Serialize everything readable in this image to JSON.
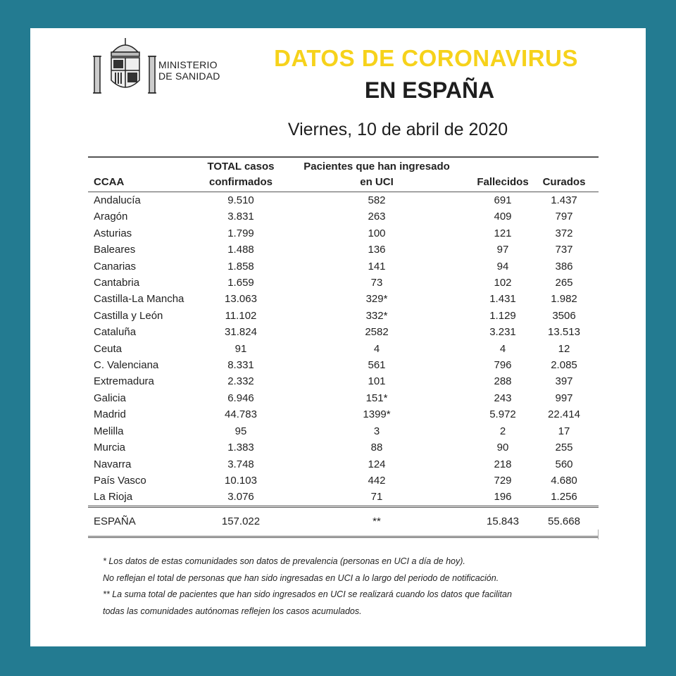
{
  "colors": {
    "border": "#237b91",
    "title_accent": "#f6d21b"
  },
  "logo": {
    "icon": "coat-of-arms-of-spain",
    "line1": "MINISTERIO",
    "line2": "DE SANIDAD"
  },
  "header": {
    "title_line1": "DATOS DE CORONAVIRUS",
    "title_line2": "EN ESPAÑA",
    "date": "Viernes, 10 de abril de 2020"
  },
  "table": {
    "columns": [
      {
        "line1": "",
        "line2": "CCAA"
      },
      {
        "line1": "TOTAL casos",
        "line2": "confirmados"
      },
      {
        "line1": "Pacientes que han ingresado",
        "line2": "en UCI"
      },
      {
        "line1": "",
        "line2": "Fallecidos"
      },
      {
        "line1": "",
        "line2": "Curados"
      }
    ],
    "rows": [
      [
        "Andalucía",
        "9.510",
        "582",
        "691",
        "1.437"
      ],
      [
        "Aragón",
        "3.831",
        "263",
        "409",
        "797"
      ],
      [
        "Asturias",
        "1.799",
        "100",
        "121",
        "372"
      ],
      [
        "Baleares",
        "1.488",
        "136",
        "97",
        "737"
      ],
      [
        "Canarias",
        "1.858",
        "141",
        "94",
        "386"
      ],
      [
        "Cantabria",
        "1.659",
        "73",
        "102",
        "265"
      ],
      [
        "Castilla-La Mancha",
        "13.063",
        "329*",
        "1.431",
        "1.982"
      ],
      [
        "Castilla y León",
        "11.102",
        "332*",
        "1.129",
        "3506"
      ],
      [
        "Cataluña",
        "31.824",
        "2582",
        "3.231",
        "13.513"
      ],
      [
        "Ceuta",
        "91",
        "4",
        "4",
        "12"
      ],
      [
        "C. Valenciana",
        "8.331",
        "561",
        "796",
        "2.085"
      ],
      [
        "Extremadura",
        "2.332",
        "101",
        "288",
        "397"
      ],
      [
        "Galicia",
        "6.946",
        "151*",
        "243",
        "997"
      ],
      [
        "Madrid",
        "44.783",
        "1399*",
        "5.972",
        "22.414"
      ],
      [
        "Melilla",
        "95",
        "3",
        "2",
        "17"
      ],
      [
        "Murcia",
        "1.383",
        "88",
        "90",
        "255"
      ],
      [
        "Navarra",
        "3.748",
        "124",
        "218",
        "560"
      ],
      [
        "País Vasco",
        "10.103",
        "442",
        "729",
        "4.680"
      ],
      [
        "La Rioja",
        "3.076",
        "71",
        "196",
        "1.256"
      ]
    ],
    "total": [
      "ESPAÑA",
      "157.022",
      "**",
      "15.843",
      "55.668"
    ]
  },
  "notes": [
    "* Los datos de estas comunidades son datos de prevalencia (personas en UCI a día de hoy).",
    "No reflejan el total de personas que han sido ingresadas en UCI a lo largo del periodo de notificación.",
    "** La suma total de pacientes que han sido ingresados en UCI se realizará cuando los datos que facilitan",
    "todas las comunidades autónomas reflejen los casos acumulados."
  ]
}
